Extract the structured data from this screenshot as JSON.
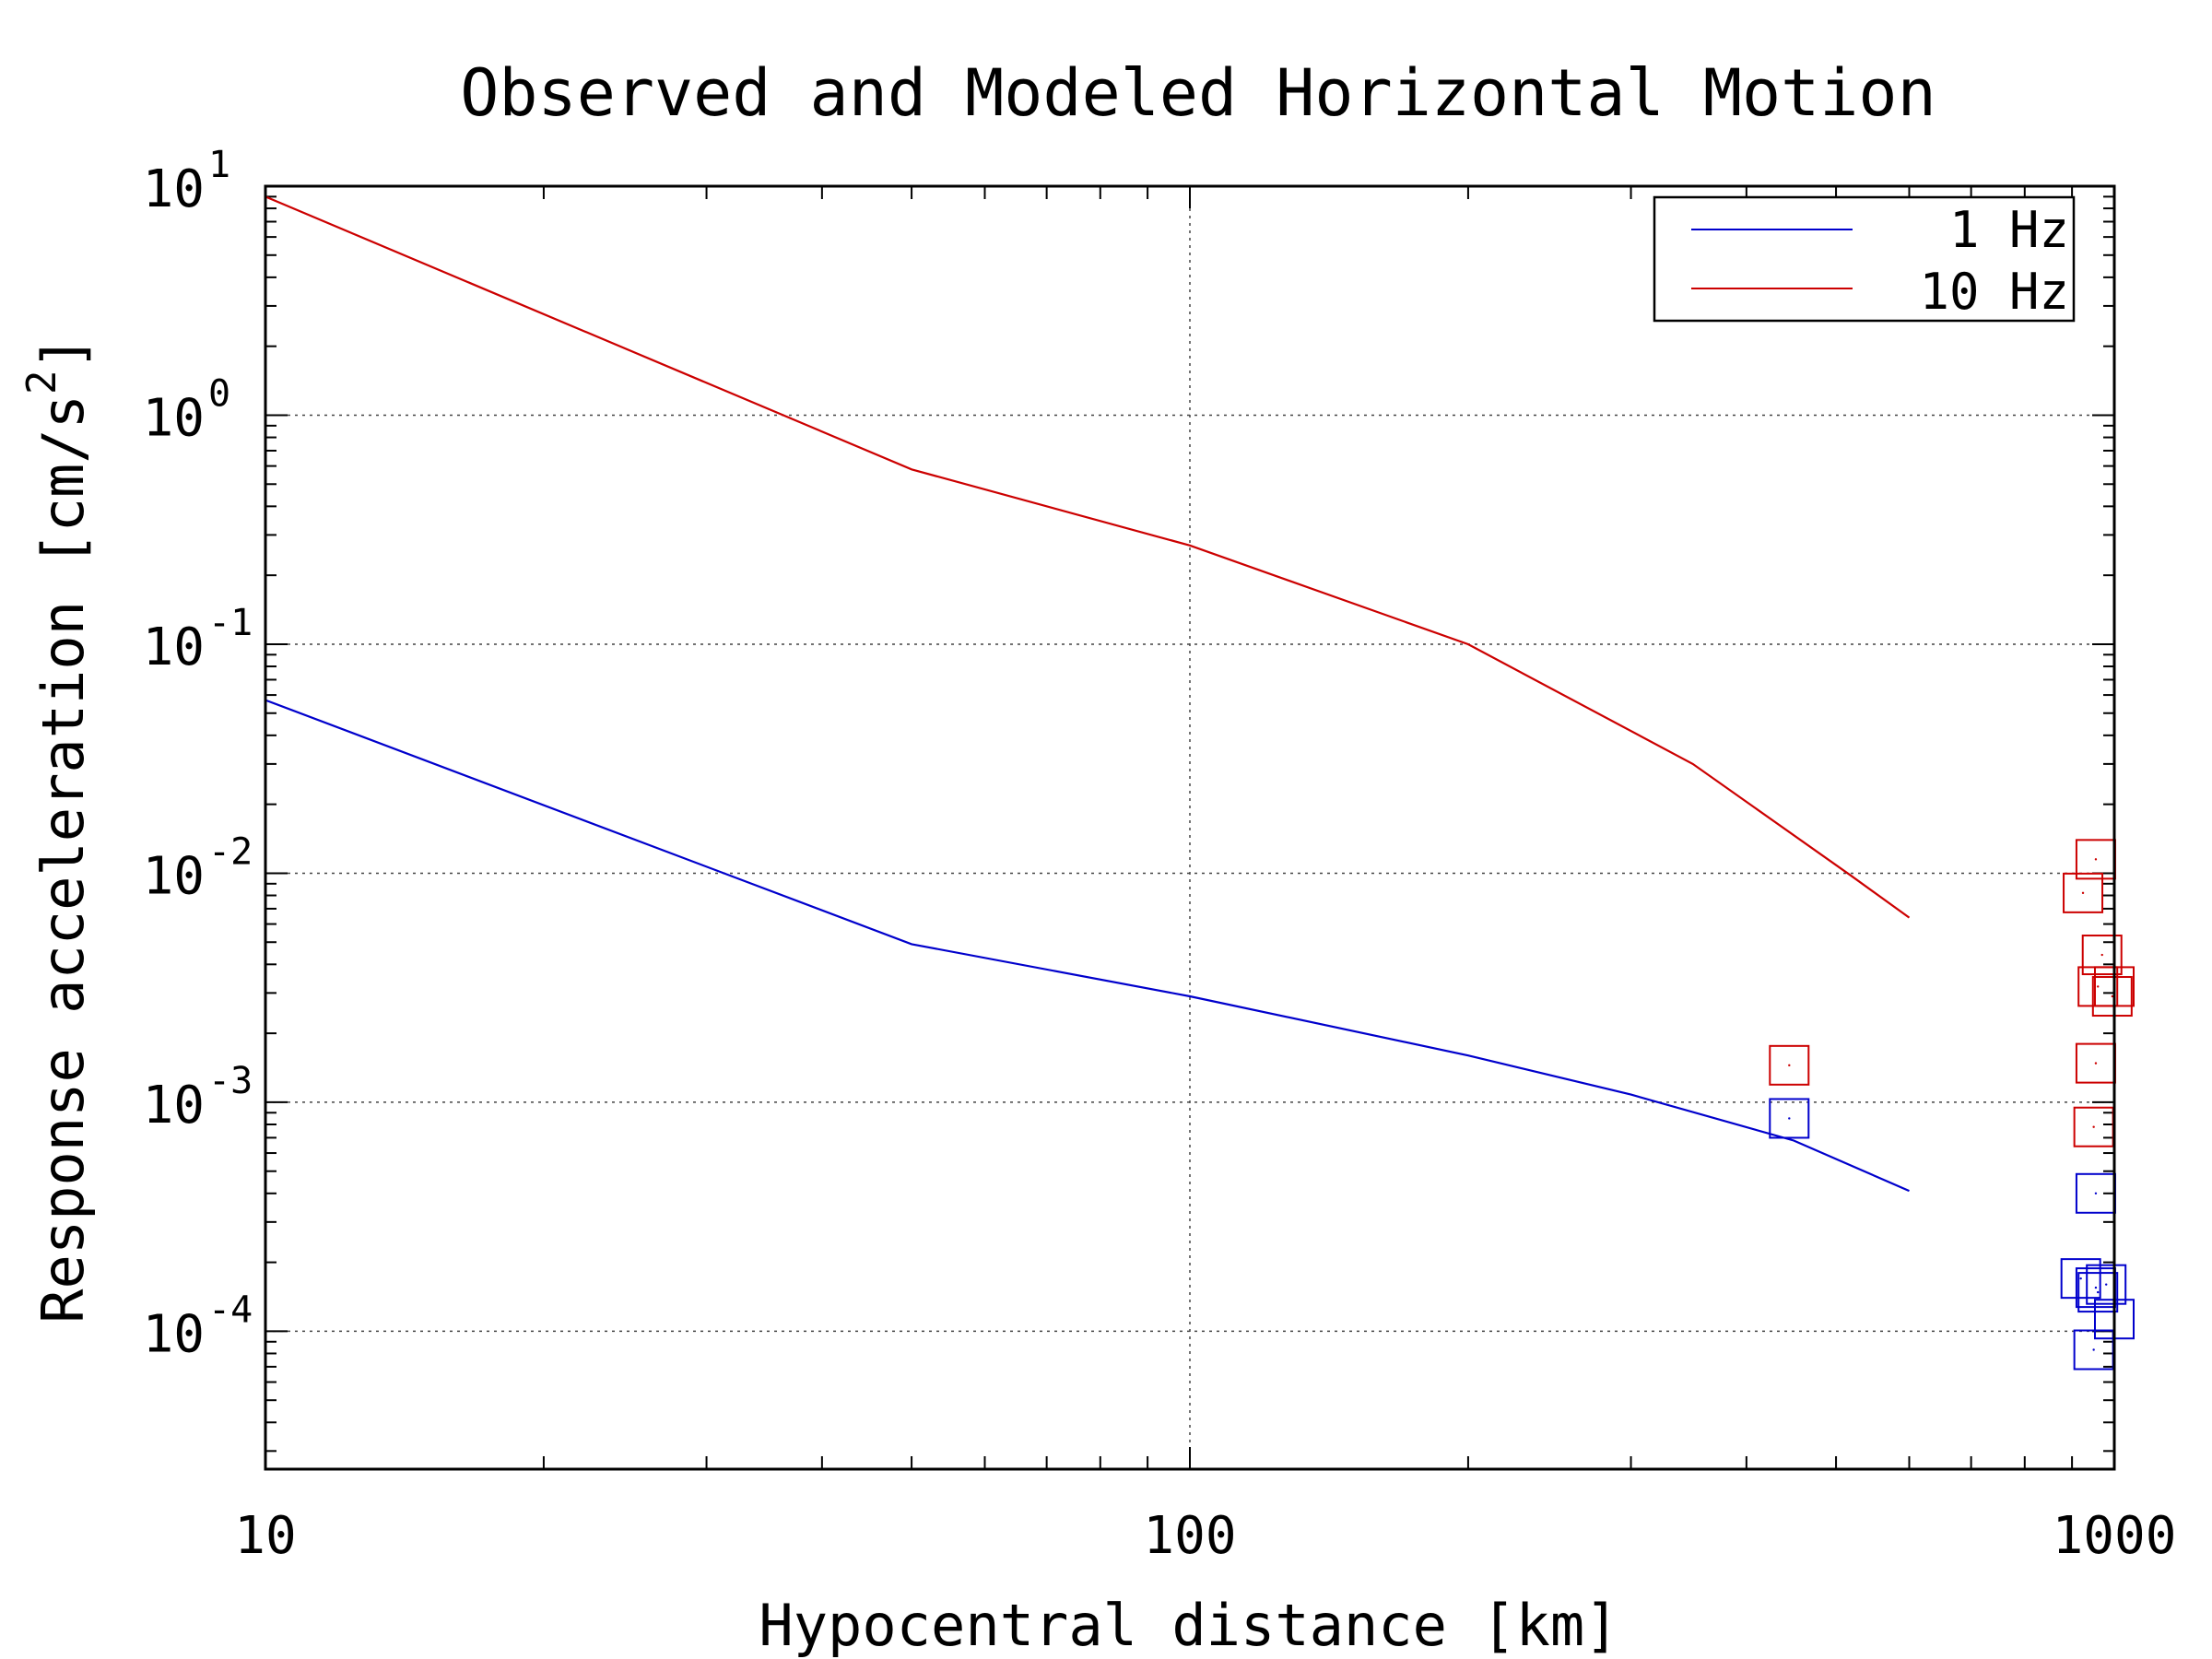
{
  "chart_data": {
    "type": "line",
    "title": "Observed and Modeled Horizontal Motion",
    "xlabel": "Hypocentral distance [km]",
    "ylabel": "Response acceleration [cm/s2]",
    "ylabel_parts": {
      "main": "Response acceleration [cm/s",
      "sup": "2",
      "end": "]"
    },
    "x_scale": "log",
    "y_scale": "log",
    "xlim": [
      10,
      1000
    ],
    "ylim": [
      2.5e-05,
      10
    ],
    "x_ticks": [
      {
        "value": 10,
        "label": "10"
      },
      {
        "value": 100,
        "label": "100"
      },
      {
        "value": 1000,
        "label": "1000"
      }
    ],
    "y_ticks": [
      {
        "value": 10,
        "base": "10",
        "exp": "1"
      },
      {
        "value": 1,
        "base": "10",
        "exp": "0"
      },
      {
        "value": 0.1,
        "base": "10",
        "exp": "-1"
      },
      {
        "value": 0.01,
        "base": "10",
        "exp": "-2"
      },
      {
        "value": 0.001,
        "base": "10",
        "exp": "-3"
      },
      {
        "value": 0.0001,
        "base": "10",
        "exp": "-4"
      }
    ],
    "grid": true,
    "legend": {
      "position": "top-right"
    },
    "series": [
      {
        "name": "1 Hz",
        "color": "#0000cc",
        "kind": "line",
        "x": [
          10,
          50,
          100,
          200,
          300,
          450,
          600
        ],
        "y": [
          0.057,
          0.0049,
          0.0029,
          0.0016,
          0.00108,
          0.00068,
          0.00041
        ]
      },
      {
        "name": "10 Hz",
        "color": "#cc0000",
        "kind": "line",
        "x": [
          10,
          50,
          100,
          200,
          350,
          520,
          600
        ],
        "y": [
          9.0,
          0.58,
          0.27,
          0.1,
          0.03,
          0.0097,
          0.0064
        ]
      }
    ],
    "observed": [
      {
        "color": "#0000cc",
        "points": [
          {
            "x": 445,
            "y": 0.00085
          },
          {
            "x": 955,
            "y": 0.0004
          },
          {
            "x": 920,
            "y": 0.00017
          },
          {
            "x": 955,
            "y": 0.000155
          },
          {
            "x": 980,
            "y": 0.00016
          },
          {
            "x": 960,
            "y": 0.000148
          },
          {
            "x": 1000,
            "y": 0.000113
          },
          {
            "x": 950,
            "y": 8.3e-05
          }
        ]
      },
      {
        "color": "#cc0000",
        "points": [
          {
            "x": 445,
            "y": 0.00145
          },
          {
            "x": 955,
            "y": 0.0115
          },
          {
            "x": 925,
            "y": 0.0082
          },
          {
            "x": 970,
            "y": 0.0044
          },
          {
            "x": 960,
            "y": 0.0032
          },
          {
            "x": 1000,
            "y": 0.0032
          },
          {
            "x": 995,
            "y": 0.0029
          },
          {
            "x": 955,
            "y": 0.00148
          },
          {
            "x": 950,
            "y": 0.00078
          }
        ]
      }
    ]
  }
}
